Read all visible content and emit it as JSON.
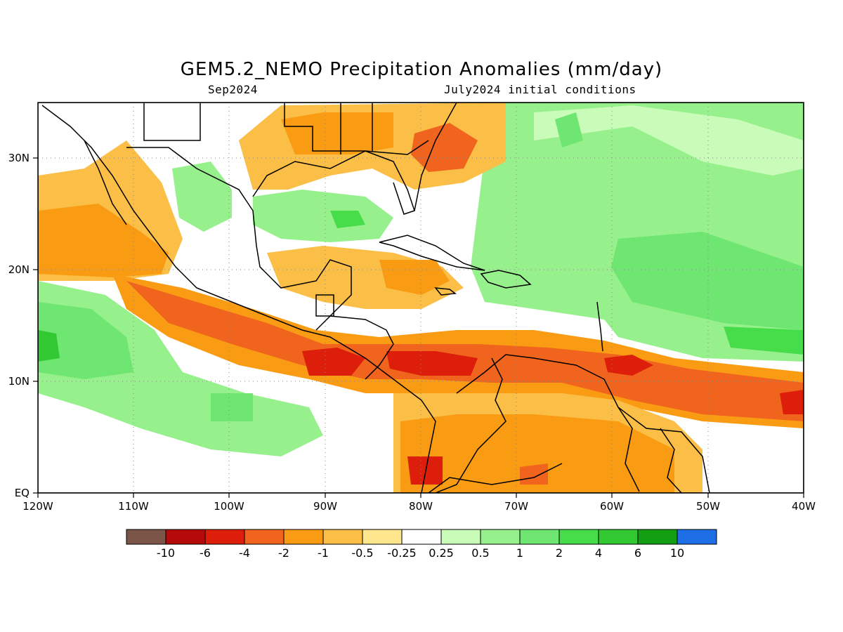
{
  "title": "GEM5.2_NEMO Precipitation Anomalies (mm/day)",
  "valid_month": "Sep2024",
  "init_conditions": "July2024 initial conditions",
  "lat_labels": [
    "30N",
    "20N",
    "10N",
    "EQ"
  ],
  "lon_labels": [
    "120W",
    "110W",
    "100W",
    "90W",
    "80W",
    "70W",
    "60W",
    "50W",
    "40W"
  ],
  "colorbar": {
    "labels": [
      "-10",
      "-6",
      "-4",
      "-2",
      "-1",
      "-0.5",
      "-0.25",
      "0.25",
      "0.5",
      "1",
      "2",
      "4",
      "6",
      "10"
    ],
    "colors": [
      "#7a5548",
      "#b40a0a",
      "#dc1e0a",
      "#f0641e",
      "#fa9b14",
      "#fbbe46",
      "#fde68c",
      "#ffffff",
      "#c8fcb8",
      "#96f08c",
      "#6ee671",
      "#46dc4a",
      "#32c832",
      "#12a012",
      "#1e6ee6"
    ]
  },
  "chart_data": {
    "type": "heatmap",
    "title": "GEM5.2_NEMO Precipitation Anomalies (mm/day)",
    "xlabel": "",
    "ylabel": "",
    "xlim": [
      -120,
      -40
    ],
    "ylim": [
      0,
      35
    ],
    "x_ticks": [
      -120,
      -110,
      -100,
      -90,
      -80,
      -70,
      -60,
      -50,
      -40
    ],
    "y_ticks": [
      0,
      10,
      20,
      30
    ],
    "grid": "dotted",
    "units": "mm/day",
    "levels": [
      -10,
      -6,
      -4,
      -2,
      -1,
      -0.5,
      -0.25,
      0.25,
      0.5,
      1,
      2,
      4,
      6,
      10
    ]
  }
}
